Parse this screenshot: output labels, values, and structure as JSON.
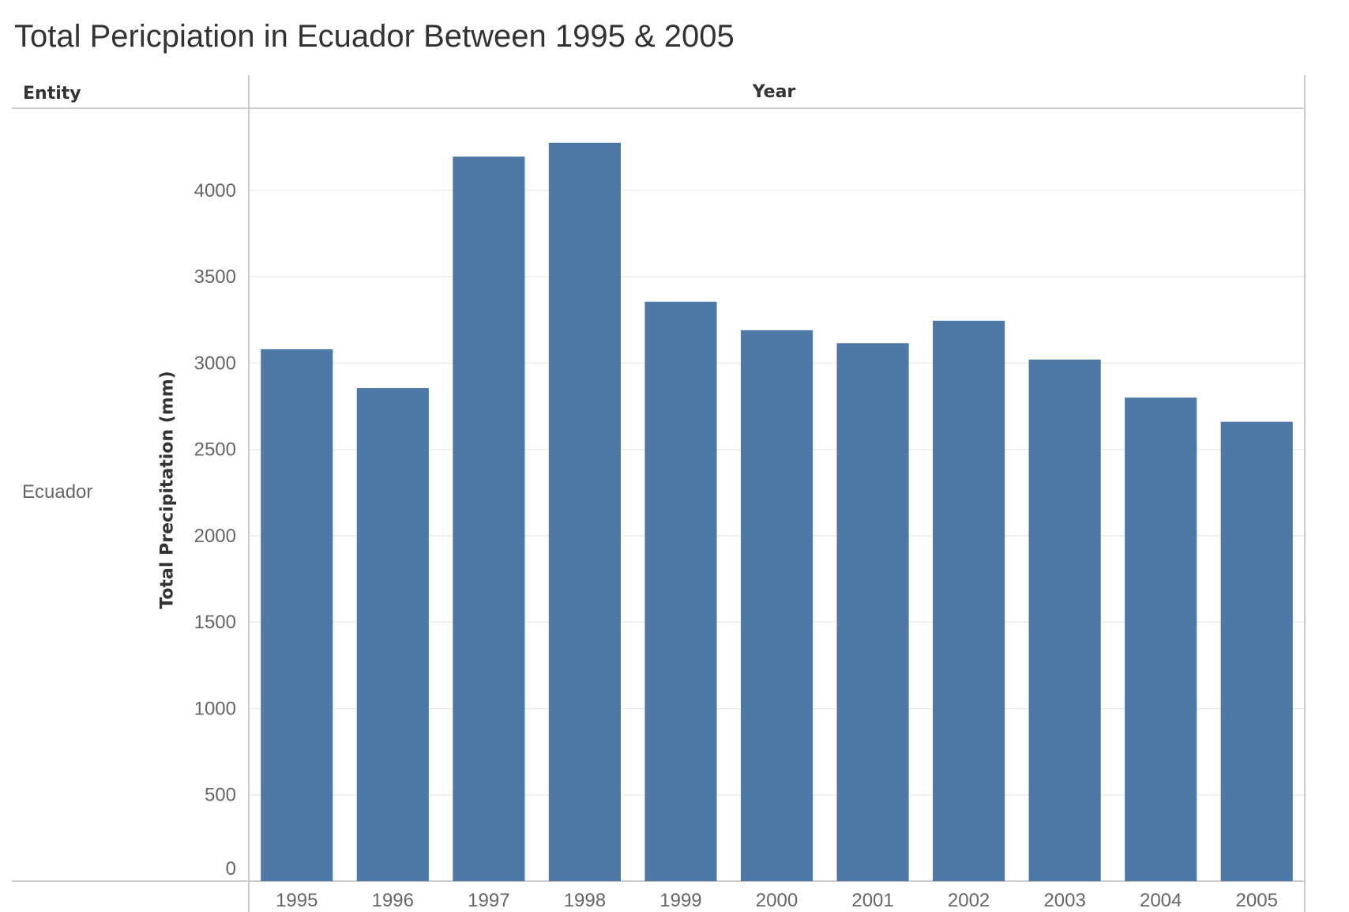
{
  "title": "Total Pericpiation in Ecuador Between 1995 & 2005",
  "headers": {
    "entity": "Entity",
    "year": "Year"
  },
  "row_label": "Ecuador",
  "colors": {
    "bar": "#4e79a7",
    "grid": "#ececec",
    "axis": "#cccccc",
    "text": "#666666"
  },
  "chart_data": {
    "type": "bar",
    "categories": [
      "1995",
      "1996",
      "1997",
      "1998",
      "1999",
      "2000",
      "2001",
      "2002",
      "2003",
      "2004",
      "2005"
    ],
    "values": [
      3080,
      2855,
      4195,
      4275,
      3355,
      3190,
      3115,
      3245,
      3020,
      2800,
      2660
    ],
    "ylabel": "Total Precipitation (mm)",
    "xlabel": "Year",
    "ylim": [
      0,
      4475
    ],
    "yticks": [
      0,
      500,
      1000,
      1500,
      2000,
      2500,
      3000,
      3500,
      4000
    ],
    "grid": true
  }
}
